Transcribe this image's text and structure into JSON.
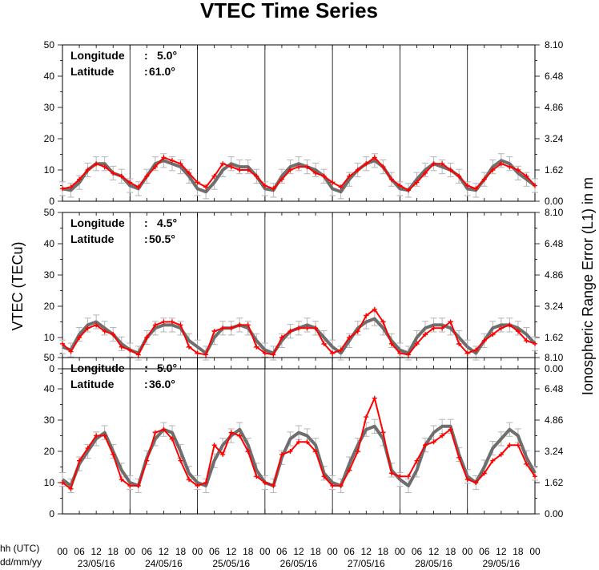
{
  "chart_data": {
    "type": "line",
    "title": "VTEC Time Series",
    "ylabel": "VTEC (TECu)",
    "ylabel_right": "Ionospheric Range Error (L1) in m",
    "xlabel_hours": "hh (UTC)",
    "xlabel_dates": "dd/mm/yy",
    "ylim": [
      0,
      50
    ],
    "yticks": [
      "0",
      "10",
      "20",
      "30",
      "40",
      "50"
    ],
    "yticks_right": [
      "0.00",
      "1.62",
      "3.24",
      "4.86",
      "6.48",
      "8.10"
    ],
    "hour_labels": [
      "00",
      "06",
      "12",
      "18",
      "00",
      "06",
      "12",
      "18",
      "00",
      "06",
      "12",
      "18",
      "00",
      "06",
      "12",
      "18",
      "00",
      "06",
      "12",
      "18",
      "00",
      "06",
      "12",
      "18",
      "00",
      "06",
      "12",
      "18",
      "00"
    ],
    "dates": [
      "23/05/16",
      "24/05/16",
      "25/05/16",
      "26/05/16",
      "27/05/16",
      "28/05/16",
      "29/05/16"
    ],
    "x_unit": "hours since 23/05/16 00 UTC",
    "colors": {
      "measured": "#ff0000",
      "model": "#6e6e6e",
      "errorbar": "#b4b4b4",
      "grid": "#000000"
    },
    "panels": [
      {
        "lon_label": "Longitude",
        "lon_value": "5.0°",
        "lat_label": "Latitude",
        "lat_value": "61.0°",
        "series": [
          {
            "role": "model",
            "x": [
              0,
              3,
              6,
              9,
              12,
              15,
              18,
              21,
              24,
              27,
              30,
              33,
              36,
              39,
              42,
              45,
              48,
              51,
              54,
              57,
              60,
              63,
              66,
              69,
              72,
              75,
              78,
              81,
              84,
              87,
              90,
              93,
              96,
              99,
              102,
              105,
              108,
              111,
              114,
              117,
              120,
              123,
              126,
              129,
              132,
              135,
              138,
              141,
              144,
              147,
              150,
              153,
              156,
              159,
              162,
              165,
              168
            ],
            "y": [
              4,
              3.5,
              6,
              10,
              12,
              12,
              9,
              8,
              5,
              4,
              8,
              12,
              13,
              12,
              11,
              8,
              4,
              3,
              6,
              10,
              12,
              11,
              11,
              8,
              4,
              3.5,
              8,
              11,
              12,
              11,
              10,
              8,
              4,
              3,
              7,
              10,
              12,
              13,
              11,
              7,
              4,
              3.5,
              7,
              10,
              12,
              11,
              10,
              8,
              4,
              3.5,
              7,
              11,
              13,
              12,
              9,
              7,
              5
            ]
          },
          {
            "role": "measured",
            "x": [
              0,
              3,
              6,
              9,
              12,
              15,
              18,
              21,
              24,
              27,
              30,
              33,
              36,
              39,
              42,
              45,
              48,
              51,
              54,
              57,
              60,
              63,
              66,
              69,
              72,
              75,
              78,
              81,
              84,
              87,
              90,
              93,
              96,
              99,
              102,
              105,
              108,
              111,
              114,
              117,
              120,
              123,
              126,
              129,
              132,
              135,
              138,
              141,
              144,
              147,
              150,
              153,
              156,
              159,
              162,
              165,
              168
            ],
            "y": [
              4,
              4.5,
              7,
              10,
              12,
              11,
              9,
              8,
              6,
              4.5,
              8,
              11,
              14,
              13,
              12,
              9,
              6,
              4.5,
              8,
              12,
              11,
              10,
              10,
              8,
              5,
              4,
              7,
              10,
              11,
              11,
              9,
              8,
              6,
              4.5,
              8,
              10,
              12,
              14,
              11,
              7,
              5,
              3.5,
              6,
              9,
              12,
              12,
              10,
              8,
              5,
              4,
              7,
              10,
              12,
              11,
              10,
              8,
              5
            ]
          }
        ]
      },
      {
        "lon_label": "Longitude",
        "lon_value": "4.5°",
        "lat_label": "Latitude",
        "lat_value": "50.5°",
        "series": [
          {
            "role": "model",
            "x": [
              0,
              3,
              6,
              9,
              12,
              15,
              18,
              21,
              24,
              27,
              30,
              33,
              36,
              39,
              42,
              45,
              48,
              51,
              54,
              57,
              60,
              63,
              66,
              69,
              72,
              75,
              78,
              81,
              84,
              87,
              90,
              93,
              96,
              99,
              102,
              105,
              108,
              111,
              114,
              117,
              120,
              123,
              126,
              129,
              132,
              135,
              138,
              141,
              144,
              147,
              150,
              153,
              156,
              159,
              162,
              165,
              168
            ],
            "y": [
              7,
              6,
              11,
              14,
              15,
              13,
              11,
              8,
              6,
              5,
              10,
              13,
              14,
              14,
              13,
              9,
              7,
              5,
              10,
              13,
              13,
              14,
              13,
              9,
              6,
              5,
              9,
              12,
              13,
              14,
              13,
              10,
              7,
              5,
              9,
              13,
              15,
              16,
              13,
              9,
              6,
              5,
              10,
              13,
              14,
              14,
              13,
              10,
              7,
              5,
              9,
              13,
              14,
              14,
              13,
              11,
              8
            ]
          },
          {
            "role": "measured",
            "x": [
              0,
              3,
              6,
              9,
              12,
              15,
              18,
              21,
              24,
              27,
              30,
              33,
              36,
              39,
              42,
              45,
              48,
              51,
              54,
              57,
              60,
              63,
              66,
              69,
              72,
              75,
              78,
              81,
              84,
              87,
              90,
              93,
              96,
              99,
              102,
              105,
              108,
              111,
              114,
              117,
              120,
              123,
              126,
              129,
              132,
              135,
              138,
              141,
              144,
              147,
              150,
              153,
              156,
              159,
              162,
              165,
              168
            ],
            "y": [
              8,
              5.5,
              10,
              13,
              14,
              12,
              11,
              7,
              6,
              4.5,
              10,
              14,
              15,
              15,
              14,
              7,
              5,
              4.5,
              12,
              13,
              13,
              14,
              14,
              7,
              5,
              4.5,
              10,
              12,
              13,
              13,
              13,
              8,
              5,
              6,
              10,
              12,
              17,
              19,
              15,
              8,
              5,
              4.5,
              8,
              11,
              13,
              13,
              15,
              8,
              5,
              6,
              9,
              11,
              13,
              14,
              12,
              9,
              8
            ]
          }
        ]
      },
      {
        "lon_label": "Longitude",
        "lon_value": "5.0°",
        "lat_label": "Latitude",
        "lat_value": "36.0°",
        "series": [
          {
            "role": "model",
            "x": [
              0,
              3,
              6,
              9,
              12,
              15,
              18,
              21,
              24,
              27,
              30,
              33,
              36,
              39,
              42,
              45,
              48,
              51,
              54,
              57,
              60,
              63,
              66,
              69,
              72,
              75,
              78,
              81,
              84,
              87,
              90,
              93,
              96,
              99,
              102,
              105,
              108,
              111,
              114,
              117,
              120,
              123,
              126,
              129,
              132,
              135,
              138,
              141,
              144,
              147,
              150,
              153,
              156,
              159,
              162,
              165,
              168
            ],
            "y": [
              11,
              9,
              16,
              20,
              24,
              26,
              20,
              14,
              10,
              9,
              18,
              24,
              27,
              26,
              20,
              13,
              10,
              9,
              17,
              22,
              25,
              27,
              22,
              14,
              10,
              9,
              18,
              24,
              26,
              25,
              22,
              13,
              10,
              9,
              16,
              22,
              27,
              28,
              24,
              14,
              11,
              9,
              14,
              22,
              26,
              28,
              28,
              19,
              12,
              10,
              15,
              21,
              24,
              27,
              25,
              18,
              13
            ]
          },
          {
            "role": "measured",
            "x": [
              0,
              3,
              6,
              9,
              12,
              15,
              18,
              21,
              24,
              27,
              30,
              33,
              36,
              39,
              42,
              45,
              48,
              51,
              54,
              57,
              60,
              63,
              66,
              69,
              72,
              75,
              78,
              81,
              84,
              87,
              90,
              93,
              96,
              99,
              102,
              105,
              108,
              111,
              114,
              117,
              120,
              123,
              126,
              129,
              132,
              135,
              138,
              141,
              144,
              147,
              150,
              153,
              156,
              159,
              162,
              165,
              168
            ],
            "y": [
              10,
              8,
              17,
              21,
              25,
              25,
              19,
              11,
              9,
              9,
              17,
              26,
              27,
              24,
              17,
              11,
              9,
              10,
              22,
              19,
              26,
              25,
              20,
              12,
              10,
              9,
              19,
              20,
              23,
              23,
              20,
              12,
              9,
              9,
              14,
              20,
              31,
              37,
              26,
              13,
              12,
              12,
              17,
              22,
              23,
              25,
              27,
              18,
              11,
              10,
              13,
              17,
              19,
              22,
              22,
              16,
              12
            ]
          }
        ]
      }
    ]
  }
}
